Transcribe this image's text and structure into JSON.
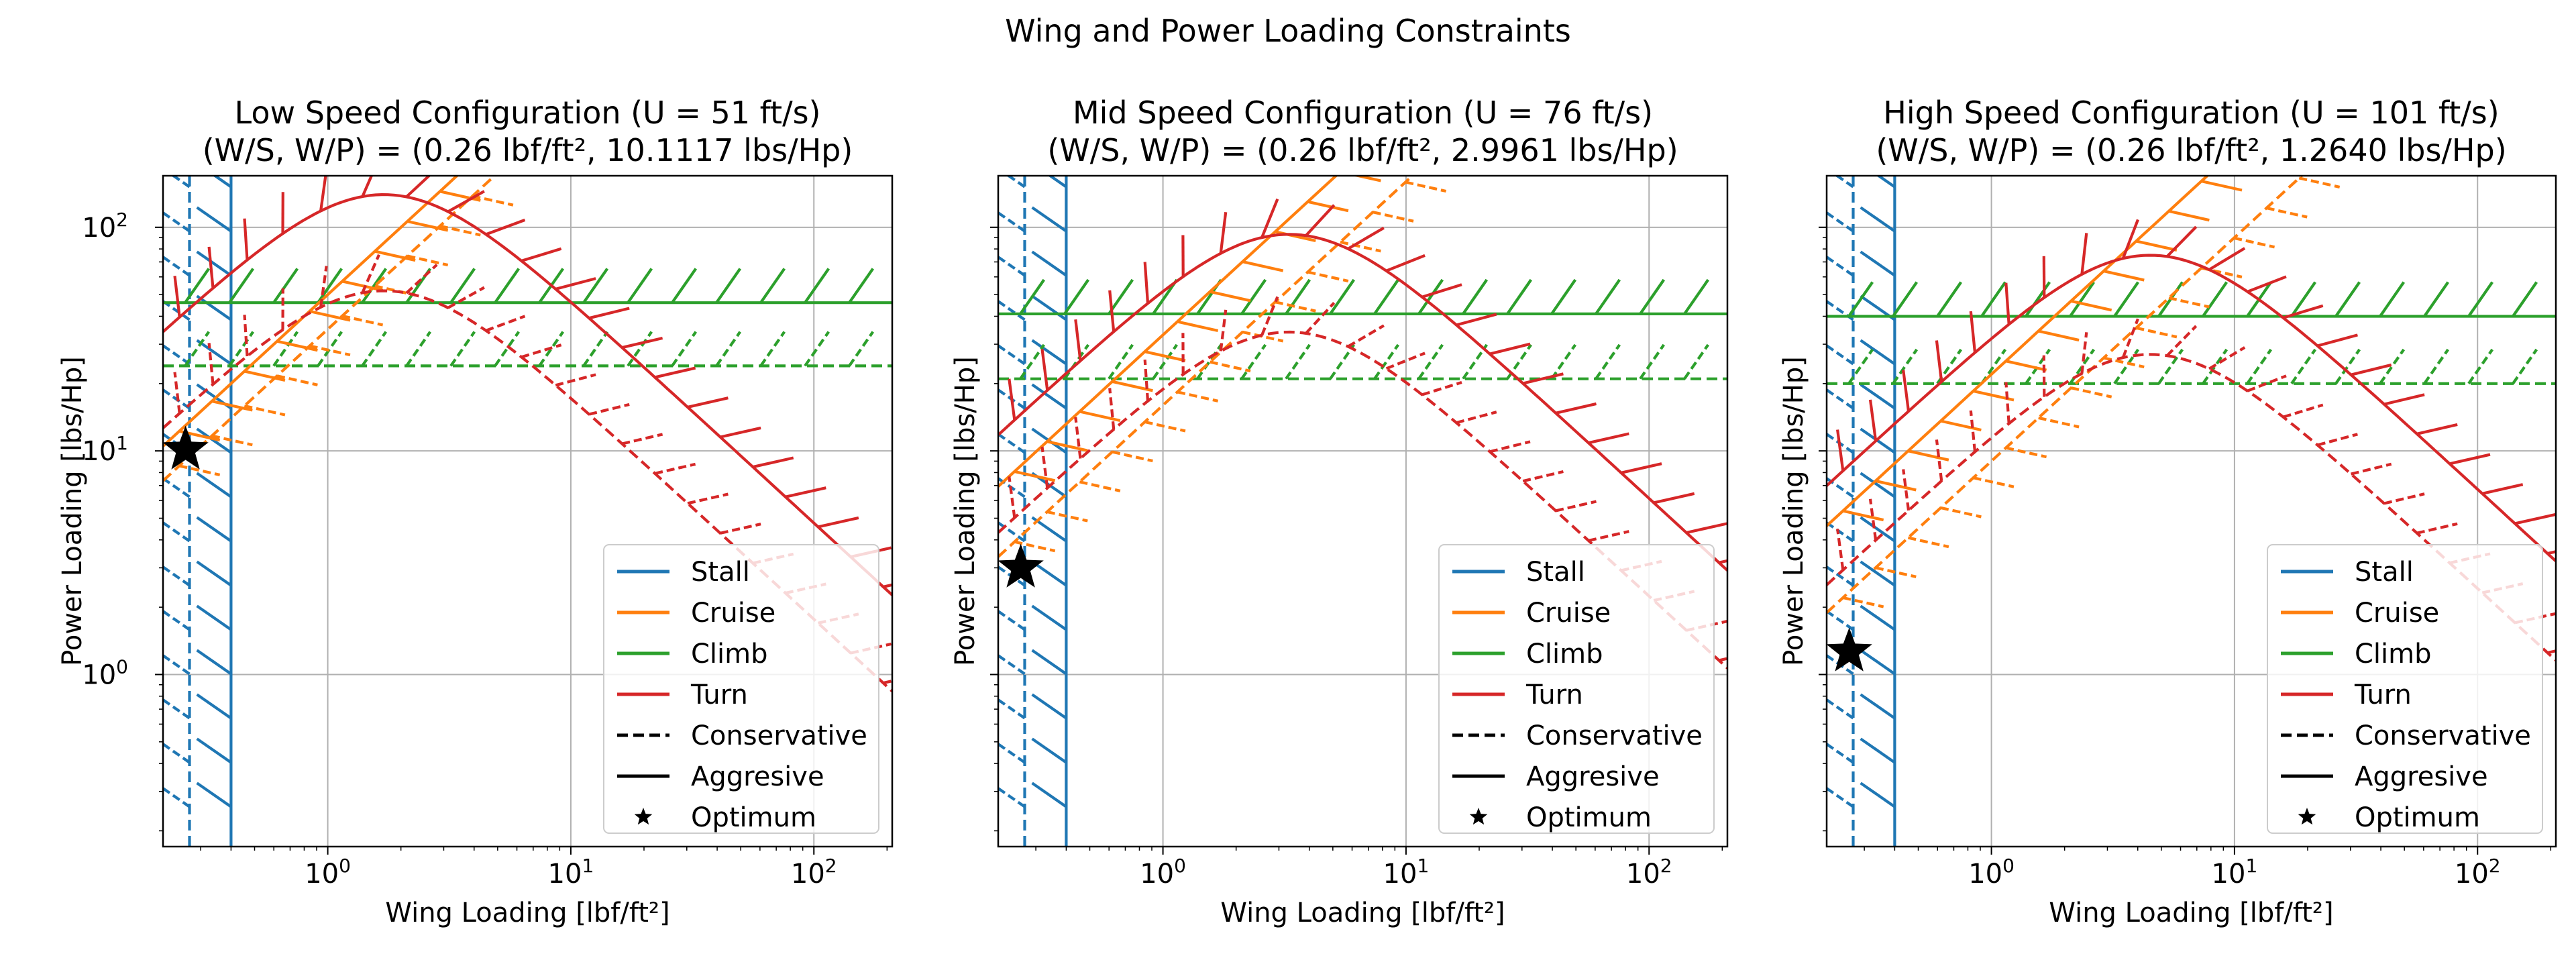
{
  "figure": {
    "suptitle": "Wing and Power Loading Constraints"
  },
  "colors": {
    "stall": "#1f77b4",
    "cruise": "#ff7f0e",
    "climb": "#2ca02c",
    "turn": "#d62728",
    "grid": "#b0b0b0",
    "legend_edge": "#cccccc",
    "marker": "#000000"
  },
  "legend": {
    "placement": "lower-right",
    "entries": [
      {
        "label": "Stall",
        "kind": "line",
        "color": "stall",
        "dash": false
      },
      {
        "label": "Cruise",
        "kind": "line",
        "color": "cruise",
        "dash": false
      },
      {
        "label": "Climb",
        "kind": "line",
        "color": "climb",
        "dash": false
      },
      {
        "label": "Turn",
        "kind": "line",
        "color": "turn",
        "dash": false
      },
      {
        "label": "Conservative",
        "kind": "line",
        "color": "marker",
        "dash": true
      },
      {
        "label": "Aggresive",
        "kind": "line",
        "color": "marker",
        "dash": false
      },
      {
        "label": "Optimum",
        "kind": "star",
        "color": "marker",
        "dash": false
      }
    ]
  },
  "chart_data": [
    {
      "type": "line",
      "title_line1": "Low Speed Configuration (U = 51 ft/s)",
      "title_line2": "(W/S, W/P) = (0.26 lbf/ft², 10.1117 lbs/Hp)",
      "xlabel": "Wing Loading [lbf/ft²]",
      "ylabel": "Power Loading [lbs/Hp]",
      "xscale": "log",
      "yscale": "log",
      "xlim": [
        0.21,
        210
      ],
      "ylim": [
        0.17,
        170
      ],
      "xticks": [
        {
          "v": 1,
          "exp": "0"
        },
        {
          "v": 10,
          "exp": "1"
        },
        {
          "v": 100,
          "exp": "2"
        }
      ],
      "yticks": [
        {
          "v": 1,
          "exp": "0"
        },
        {
          "v": 10,
          "exp": "1"
        },
        {
          "v": 100,
          "exp": "2"
        }
      ],
      "show_ytick_labels": true,
      "grid": true,
      "optimum": {
        "x": 0.26,
        "y": 10.1117
      },
      "stall": {
        "aggressive_x": 0.4,
        "conservative_x": 0.27
      },
      "climb": {
        "aggressive_y": 46,
        "conservative_y": 24
      },
      "cruise": {
        "aggressive_k": 50,
        "conservative_k": 35
      },
      "turn": {
        "aggressive": {
          "peak_x": 1.7,
          "peak_y": 140
        },
        "conservative": {
          "peak_x": 1.7,
          "peak_y": 52
        }
      }
    },
    {
      "type": "line",
      "title_line1": "Mid Speed Configuration (U = 76 ft/s)",
      "title_line2": "(W/S, W/P) = (0.26 lbf/ft², 2.9961 lbs/Hp)",
      "xlabel": "Wing Loading [lbf/ft²]",
      "ylabel": "Power Loading [lbs/Hp]",
      "xscale": "log",
      "yscale": "log",
      "xlim": [
        0.21,
        210
      ],
      "ylim": [
        0.17,
        170
      ],
      "xticks": [
        {
          "v": 1,
          "exp": "0"
        },
        {
          "v": 10,
          "exp": "1"
        },
        {
          "v": 100,
          "exp": "2"
        }
      ],
      "yticks": [
        {
          "v": 1,
          "exp": "0"
        },
        {
          "v": 10,
          "exp": "1"
        },
        {
          "v": 100,
          "exp": "2"
        }
      ],
      "show_ytick_labels": false,
      "grid": true,
      "optimum": {
        "x": 0.26,
        "y": 2.9961
      },
      "stall": {
        "aggressive_x": 0.4,
        "conservative_x": 0.27
      },
      "climb": {
        "aggressive_y": 41,
        "conservative_y": 21
      },
      "cruise": {
        "aggressive_k": 33,
        "conservative_k": 16
      },
      "turn": {
        "aggressive": {
          "peak_x": 3.3,
          "peak_y": 93
        },
        "conservative": {
          "peak_x": 3.3,
          "peak_y": 34
        }
      }
    },
    {
      "type": "line",
      "title_line1": "High Speed Configuration (U = 101 ft/s)",
      "title_line2": "(W/S, W/P) = (0.26 lbf/ft², 1.2640 lbs/Hp)",
      "xlabel": "Wing Loading [lbf/ft²]",
      "ylabel": "Power Loading [lbs/Hp]",
      "xscale": "log",
      "yscale": "log",
      "xlim": [
        0.21,
        210
      ],
      "ylim": [
        0.17,
        170
      ],
      "xticks": [
        {
          "v": 1,
          "exp": "0"
        },
        {
          "v": 10,
          "exp": "1"
        },
        {
          "v": 100,
          "exp": "2"
        }
      ],
      "yticks": [
        {
          "v": 1,
          "exp": "0"
        },
        {
          "v": 10,
          "exp": "1"
        },
        {
          "v": 100,
          "exp": "2"
        }
      ],
      "show_ytick_labels": false,
      "grid": true,
      "optimum": {
        "x": 0.26,
        "y": 1.264
      },
      "stall": {
        "aggressive_x": 0.4,
        "conservative_x": 0.27
      },
      "climb": {
        "aggressive_y": 40,
        "conservative_y": 20
      },
      "cruise": {
        "aggressive_k": 22,
        "conservative_k": 9
      },
      "turn": {
        "aggressive": {
          "peak_x": 4.5,
          "peak_y": 75
        },
        "conservative": {
          "peak_x": 4.5,
          "peak_y": 27
        }
      }
    }
  ]
}
